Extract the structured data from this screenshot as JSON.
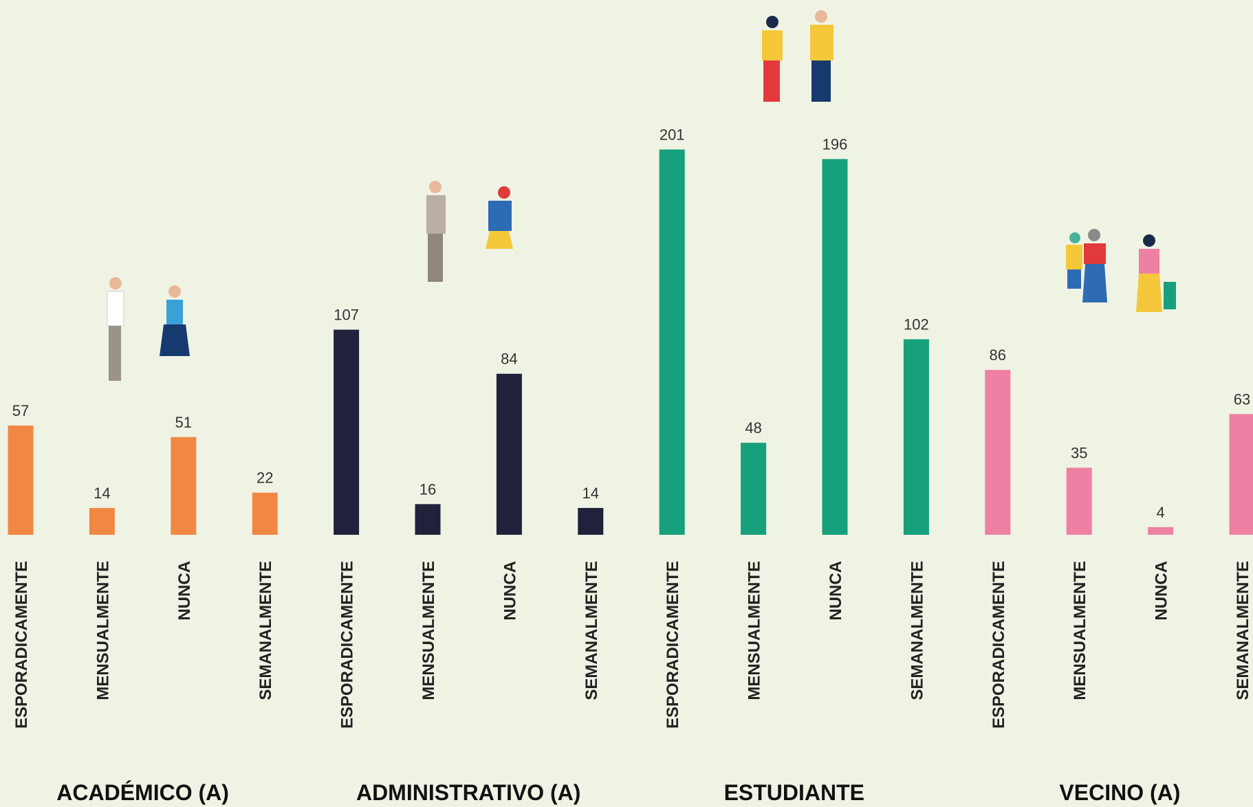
{
  "chart_data": {
    "type": "bar",
    "groups": [
      {
        "name": "ACADÉMICO (A)",
        "color": "#f08843",
        "categories": [
          "ESPORADICAMENTE",
          "MENSUALMENTE",
          "NUNCA",
          "SEMANALMENTE"
        ],
        "values": [
          57,
          14,
          51,
          22
        ]
      },
      {
        "name": "ADMINISTRATIVO (A)",
        "color": "#21213b",
        "categories": [
          "ESPORADICAMENTE",
          "MENSUALMENTE",
          "NUNCA",
          "SEMANALMENTE"
        ],
        "values": [
          107,
          16,
          84,
          14
        ]
      },
      {
        "name": "ESTUDIANTE",
        "color": "#16a07b",
        "categories": [
          "ESPORADICAMENTE",
          "MENSUALMENTE",
          "NUNCA",
          "SEMANALMENTE"
        ],
        "values": [
          201,
          48,
          196,
          102
        ]
      },
      {
        "name": "VECINO (A)",
        "color": "#ee80a4",
        "categories": [
          "ESPORADICAMENTE",
          "MENSUALMENTE",
          "NUNCA",
          "SEMANALMENTE"
        ],
        "values": [
          86,
          35,
          4,
          63
        ]
      }
    ]
  }
}
